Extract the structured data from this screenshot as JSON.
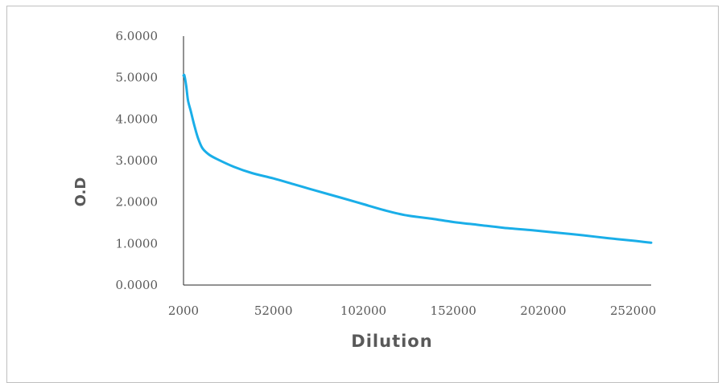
{
  "chart_data": {
    "type": "line",
    "title": "",
    "xlabel": "Dilution",
    "ylabel": "O.D",
    "xlim": [
      2000,
      262000
    ],
    "ylim": [
      0,
      6
    ],
    "x_ticks": [
      "2000",
      "52000",
      "102000",
      "152000",
      "202000",
      "252000"
    ],
    "y_ticks": [
      "0.0000",
      "1.0000",
      "2.0000",
      "3.0000",
      "4.0000",
      "5.0000",
      "6.0000"
    ],
    "series": [
      {
        "color": "#1aaee8",
        "x": [
          2000,
          2500,
          3500,
          4500,
          6000,
          8000,
          10000,
          12500,
          16000,
          20000,
          30000,
          40000,
          52000,
          64000,
          76000,
          90000,
          102000,
          114000,
          126000,
          140000,
          152000,
          166000,
          180000,
          196000,
          210000,
          224000,
          238000,
          252000,
          262000
        ],
        "y": [
          5.05,
          5.05,
          4.8,
          4.45,
          4.2,
          3.85,
          3.55,
          3.3,
          3.15,
          3.05,
          2.85,
          2.7,
          2.57,
          2.42,
          2.27,
          2.1,
          1.95,
          1.8,
          1.68,
          1.6,
          1.52,
          1.45,
          1.38,
          1.32,
          1.26,
          1.2,
          1.13,
          1.07,
          1.02
        ]
      }
    ]
  }
}
